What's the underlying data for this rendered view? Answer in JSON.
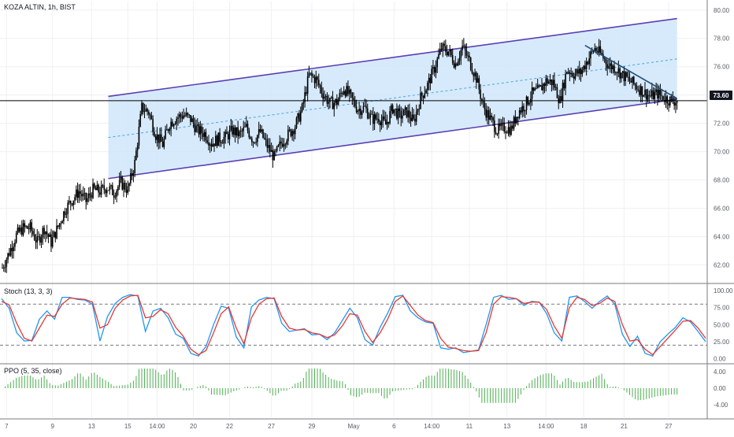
{
  "header": {
    "symbol": "KOZA ALTIN",
    "interval": "1h",
    "exchange": "BIST",
    "title": "KOZA ALTIN, 1h, BIST"
  },
  "colors": {
    "background": "#ffffff",
    "grid": "#eef0f3",
    "candle": "#000000",
    "channel_fill": "#cfe6fb",
    "channel_line": "#5b3fb0",
    "channel_mid": "#4aa3df",
    "trendline": "#1f4e79",
    "hline": "#000000",
    "stoch_k": "#2196f3",
    "stoch_d": "#e53935",
    "ppo": "#4caf50",
    "price_tag_bg": "#131722",
    "price_tag_text": "#ffffff"
  },
  "price_tag": "73.60",
  "chart_data": [
    {
      "type": "candlestick",
      "title": "KOZA ALTIN, 1h, BIST",
      "ylim": [
        60.8,
        80.6
      ],
      "yticks": [
        "62.00",
        "64.00",
        "66.00",
        "68.00",
        "70.00",
        "72.00",
        "74.00",
        "76.00",
        "78.00",
        "80.00"
      ],
      "ytick_values": [
        62,
        64,
        66,
        68,
        70,
        72,
        74,
        76,
        78,
        80
      ],
      "x_tick_labels": [
        "7",
        "9",
        "13",
        "15",
        "14:00",
        "20",
        "22",
        "27",
        "29",
        "May",
        "6",
        "14:00",
        "11",
        "13",
        "14:00",
        "18",
        "21",
        "27"
      ],
      "x_tick_bar_index": [
        3,
        36,
        64,
        90,
        111,
        137,
        163,
        193,
        222,
        252,
        281,
        308,
        335,
        362,
        390,
        417,
        446,
        478
      ],
      "horizontal_line": 73.6,
      "channel": {
        "upper": {
          "start_bar": 76,
          "start": 73.9,
          "end_bar": 484,
          "end": 79.4
        },
        "lower": {
          "start_bar": 76,
          "start": 68.1,
          "end_bar": 484,
          "end": 73.7
        }
      },
      "trendline": {
        "start_bar": 418,
        "start": 77.5,
        "end_bar": 484,
        "end": 73.75
      },
      "closes": [
        61.8,
        62.9,
        64.1,
        64.6,
        64.6,
        63.6,
        64.6,
        63.6,
        64.7,
        65.9,
        66.6,
        67.2,
        66.5,
        67.3,
        67.2,
        67.5,
        67.1,
        67.8,
        67.3,
        69.2,
        73.1,
        72.8,
        71.2,
        70.5,
        72.0,
        72.4,
        72.6,
        72.3,
        71.5,
        71.3,
        70.6,
        70.9,
        71.0,
        71.5,
        71.2,
        71.7,
        70.8,
        71.4,
        70.4,
        69.6,
        70.6,
        71.2,
        71.8,
        73.0,
        75.4,
        75.1,
        74.1,
        73.4,
        73.5,
        74.5,
        73.8,
        73.0,
        73.1,
        72.3,
        72.4,
        71.9,
        73.1,
        72.5,
        72.8,
        72.1,
        73.8,
        74.7,
        75.9,
        77.3,
        77.1,
        76.2,
        77.4,
        76.4,
        75.2,
        73.2,
        72.3,
        71.5,
        71.7,
        71.6,
        72.8,
        73.3,
        74.1,
        74.3,
        75.0,
        74.9,
        73.6,
        75.8,
        75.5,
        75.6,
        76.5,
        77.3,
        76.8,
        76.1,
        75.9,
        75.4,
        75.0,
        74.6,
        74.2,
        73.9,
        74.1,
        73.8,
        73.6
      ],
      "bar_step": 5.0,
      "ppo_label": "PPO (5, 35, close)",
      "ppo_ticks": [
        "4.00",
        "0.00",
        "-4.00"
      ],
      "ppo_tick_values": [
        4,
        0,
        -4
      ]
    },
    {
      "type": "line",
      "title": "Stoch (13, 3, 3)",
      "ylim": [
        -5,
        108
      ],
      "yticks": [
        "100.00",
        "75.00",
        "50.00",
        "25.00",
        "0.00"
      ],
      "ytick_values": [
        100,
        75,
        50,
        25,
        0
      ],
      "dashed_levels": [
        80,
        20
      ],
      "series": [
        {
          "color": "#2196f3",
          "values": [
            88,
            74,
            38,
            26,
            27,
            58,
            70,
            58,
            90,
            90,
            87,
            86,
            80,
            26,
            62,
            81,
            90,
            94,
            92,
            40,
            70,
            74,
            60,
            36,
            30,
            8,
            4,
            18,
            50,
            77,
            74,
            32,
            16,
            76,
            86,
            90,
            88,
            52,
            40,
            42,
            44,
            35,
            36,
            28,
            38,
            56,
            74,
            60,
            28,
            20,
            46,
            67,
            91,
            93,
            70,
            60,
            54,
            52,
            16,
            14,
            16,
            9,
            11,
            13,
            50,
            90,
            93,
            87,
            88,
            78,
            84,
            83,
            66,
            38,
            26,
            90,
            92,
            84,
            74,
            84,
            92,
            80,
            36,
            18,
            33,
            8,
            4,
            25,
            36,
            46,
            60,
            54,
            40,
            25
          ]
        },
        {
          "color": "#e53935",
          "values": [
            84,
            79,
            52,
            30,
            26,
            45,
            64,
            62,
            80,
            89,
            88,
            87,
            83,
            45,
            50,
            74,
            86,
            92,
            93,
            60,
            62,
            72,
            66,
            46,
            33,
            14,
            6,
            12,
            38,
            66,
            76,
            45,
            22,
            60,
            80,
            88,
            89,
            62,
            45,
            42,
            43,
            38,
            36,
            31,
            35,
            48,
            66,
            64,
            40,
            24,
            38,
            58,
            84,
            92,
            78,
            64,
            56,
            53,
            30,
            17,
            15,
            12,
            11,
            12,
            38,
            80,
            91,
            90,
            88,
            81,
            83,
            83,
            72,
            48,
            30,
            75,
            90,
            87,
            78,
            81,
            89,
            84,
            50,
            26,
            28,
            14,
            6,
            18,
            30,
            42,
            55,
            56,
            45,
            30
          ]
        }
      ]
    }
  ]
}
